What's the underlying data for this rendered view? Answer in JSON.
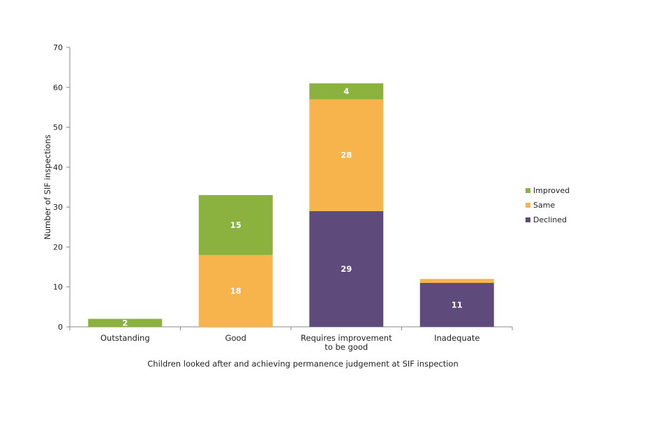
{
  "chart_data": {
    "type": "bar",
    "stacked": true,
    "categories": [
      "Outstanding",
      "Good",
      "Requires improvement to be good",
      "Inadequate"
    ],
    "category_label_lines": [
      [
        "Outstanding"
      ],
      [
        "Good"
      ],
      [
        "Requires improvement",
        "to be good"
      ],
      [
        "Inadequate"
      ]
    ],
    "series": [
      {
        "name": "Declined",
        "color": "#5f4b7b",
        "values": [
          0,
          0,
          29,
          11
        ],
        "labels": [
          "",
          "",
          "29",
          "11"
        ]
      },
      {
        "name": "Same",
        "color": "#f7b44d",
        "values": [
          0,
          18,
          28,
          1
        ],
        "labels": [
          "",
          "18",
          "28",
          ""
        ]
      },
      {
        "name": "Improved",
        "color": "#8bb23f",
        "values": [
          2,
          15,
          4,
          0
        ],
        "labels": [
          "2",
          "15",
          "4",
          ""
        ]
      }
    ],
    "legend_order": [
      "Improved",
      "Same",
      "Declined"
    ],
    "legend_position": "right",
    "xlabel": "Children looked after and achieving permanence judgement at SIF inspection",
    "ylabel": "Number of SIF inspections",
    "ylim": [
      0,
      70
    ],
    "yticks": [
      0,
      10,
      20,
      30,
      40,
      50,
      60,
      70
    ],
    "grid": false
  }
}
